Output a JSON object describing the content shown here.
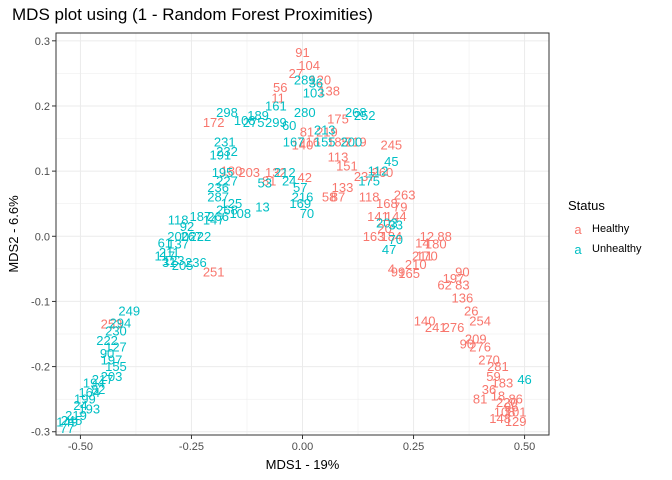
{
  "chart_data": {
    "type": "scatter",
    "title": "MDS plot using (1 - Random Forest Proximities)",
    "xlabel": "MDS1 - 19%",
    "ylabel": "MDS2 - 6.6%",
    "xlim": [
      -0.555,
      0.555
    ],
    "ylim": [
      -0.305,
      0.312
    ],
    "xticks": [
      -0.5,
      -0.25,
      0.0,
      0.25,
      0.5
    ],
    "xtick_labels": [
      "-0.50",
      "-0.25",
      "0.00",
      "0.25",
      "0.50"
    ],
    "yticks": [
      -0.3,
      -0.2,
      -0.1,
      0.0,
      0.1,
      0.2,
      0.3
    ],
    "ytick_labels": [
      "-0.3",
      "-0.2",
      "-0.1",
      "0.0",
      "0.1",
      "0.2",
      "0.3"
    ],
    "grid": true,
    "legend": {
      "title": "Status",
      "position": "right"
    },
    "series": [
      {
        "name": "Healthy",
        "color": "#F8766D",
        "points": [
          {
            "x": 0.0,
            "y": 0.282,
            "label": "91"
          },
          {
            "x": 0.015,
            "y": 0.262,
            "label": "104"
          },
          {
            "x": -0.015,
            "y": 0.25,
            "label": "27"
          },
          {
            "x": 0.04,
            "y": 0.24,
            "label": "120"
          },
          {
            "x": -0.05,
            "y": 0.228,
            "label": "56"
          },
          {
            "x": 0.06,
            "y": 0.223,
            "label": "138"
          },
          {
            "x": -0.055,
            "y": 0.212,
            "label": "11"
          },
          {
            "x": -0.2,
            "y": 0.175,
            "label": "172"
          },
          {
            "x": 0.08,
            "y": 0.18,
            "label": "175"
          },
          {
            "x": 0.0,
            "y": 0.14,
            "label": "140"
          },
          {
            "x": 0.055,
            "y": 0.16,
            "label": "219"
          },
          {
            "x": 0.01,
            "y": 0.16,
            "label": "81"
          },
          {
            "x": 0.015,
            "y": 0.145,
            "label": "216"
          },
          {
            "x": 0.08,
            "y": 0.145,
            "label": "185"
          },
          {
            "x": 0.12,
            "y": 0.145,
            "label": "219"
          },
          {
            "x": 0.2,
            "y": 0.14,
            "label": "245"
          },
          {
            "x": 0.08,
            "y": 0.122,
            "label": "113"
          },
          {
            "x": 0.1,
            "y": 0.108,
            "label": "151"
          },
          {
            "x": -0.16,
            "y": 0.1,
            "label": "180"
          },
          {
            "x": -0.12,
            "y": 0.098,
            "label": "203"
          },
          {
            "x": -0.06,
            "y": 0.098,
            "label": "132"
          },
          {
            "x": -0.075,
            "y": 0.085,
            "label": "81"
          },
          {
            "x": 0.005,
            "y": 0.09,
            "label": "42"
          },
          {
            "x": 0.18,
            "y": 0.098,
            "label": "260"
          },
          {
            "x": 0.14,
            "y": 0.092,
            "label": "237"
          },
          {
            "x": 0.09,
            "y": 0.075,
            "label": "133"
          },
          {
            "x": 0.06,
            "y": 0.06,
            "label": "58"
          },
          {
            "x": 0.08,
            "y": 0.06,
            "label": "87"
          },
          {
            "x": 0.15,
            "y": 0.06,
            "label": "118"
          },
          {
            "x": 0.23,
            "y": 0.063,
            "label": "263"
          },
          {
            "x": 0.19,
            "y": 0.05,
            "label": "168"
          },
          {
            "x": 0.22,
            "y": 0.045,
            "label": "79"
          },
          {
            "x": 0.21,
            "y": 0.03,
            "label": "144"
          },
          {
            "x": 0.17,
            "y": 0.03,
            "label": "141"
          },
          {
            "x": 0.185,
            "y": 0.012,
            "label": "20"
          },
          {
            "x": 0.16,
            "y": 0.0,
            "label": "163"
          },
          {
            "x": 0.2,
            "y": 0.0,
            "label": "184"
          },
          {
            "x": 0.28,
            "y": 0.0,
            "label": "12"
          },
          {
            "x": 0.32,
            "y": 0.0,
            "label": "88"
          },
          {
            "x": 0.27,
            "y": -0.01,
            "label": "14"
          },
          {
            "x": 0.3,
            "y": -0.012,
            "label": "180"
          },
          {
            "x": 0.27,
            "y": -0.03,
            "label": "211"
          },
          {
            "x": 0.28,
            "y": -0.03,
            "label": "170"
          },
          {
            "x": 0.255,
            "y": -0.043,
            "label": "210"
          },
          {
            "x": 0.2,
            "y": -0.05,
            "label": "4"
          },
          {
            "x": 0.215,
            "y": -0.055,
            "label": "99"
          },
          {
            "x": 0.24,
            "y": -0.057,
            "label": "165"
          },
          {
            "x": 0.36,
            "y": -0.055,
            "label": "90"
          },
          {
            "x": 0.34,
            "y": -0.065,
            "label": "197"
          },
          {
            "x": 0.32,
            "y": -0.075,
            "label": "62"
          },
          {
            "x": 0.36,
            "y": -0.075,
            "label": "83"
          },
          {
            "x": 0.36,
            "y": -0.095,
            "label": "136"
          },
          {
            "x": 0.38,
            "y": -0.115,
            "label": "26"
          },
          {
            "x": 0.4,
            "y": -0.13,
            "label": "254"
          },
          {
            "x": 0.275,
            "y": -0.13,
            "label": "140"
          },
          {
            "x": 0.3,
            "y": -0.14,
            "label": "241"
          },
          {
            "x": 0.34,
            "y": -0.14,
            "label": "276"
          },
          {
            "x": 0.39,
            "y": -0.158,
            "label": "209"
          },
          {
            "x": 0.37,
            "y": -0.165,
            "label": "90"
          },
          {
            "x": 0.4,
            "y": -0.17,
            "label": "276"
          },
          {
            "x": 0.42,
            "y": -0.19,
            "label": "270"
          },
          {
            "x": 0.44,
            "y": -0.2,
            "label": "281"
          },
          {
            "x": 0.43,
            "y": -0.215,
            "label": "59"
          },
          {
            "x": 0.45,
            "y": -0.225,
            "label": "183"
          },
          {
            "x": 0.42,
            "y": -0.235,
            "label": "36"
          },
          {
            "x": 0.44,
            "y": -0.245,
            "label": "18"
          },
          {
            "x": 0.4,
            "y": -0.25,
            "label": "81"
          },
          {
            "x": 0.46,
            "y": -0.255,
            "label": "220"
          },
          {
            "x": 0.48,
            "y": -0.25,
            "label": "86"
          },
          {
            "x": 0.47,
            "y": -0.262,
            "label": "96"
          },
          {
            "x": 0.455,
            "y": -0.27,
            "label": "108"
          },
          {
            "x": 0.48,
            "y": -0.27,
            "label": "101"
          },
          {
            "x": 0.445,
            "y": -0.28,
            "label": "148"
          },
          {
            "x": 0.48,
            "y": -0.284,
            "label": "129"
          },
          {
            "x": -0.2,
            "y": -0.055,
            "label": "251"
          },
          {
            "x": -0.43,
            "y": -0.135,
            "label": "253"
          }
        ]
      },
      {
        "name": "Unhealthy",
        "color": "#00BFC4",
        "points": [
          {
            "x": 0.005,
            "y": 0.24,
            "label": "289"
          },
          {
            "x": 0.025,
            "y": 0.22,
            "label": "103"
          },
          {
            "x": 0.03,
            "y": 0.235,
            "label": "36"
          },
          {
            "x": -0.06,
            "y": 0.2,
            "label": "161"
          },
          {
            "x": -0.1,
            "y": 0.185,
            "label": "189"
          },
          {
            "x": -0.17,
            "y": 0.19,
            "label": "298"
          },
          {
            "x": -0.13,
            "y": 0.178,
            "label": "108"
          },
          {
            "x": -0.11,
            "y": 0.175,
            "label": "275"
          },
          {
            "x": -0.06,
            "y": 0.175,
            "label": "299"
          },
          {
            "x": 0.005,
            "y": 0.19,
            "label": "280"
          },
          {
            "x": 0.12,
            "y": 0.19,
            "label": "268"
          },
          {
            "x": 0.14,
            "y": 0.185,
            "label": "252"
          },
          {
            "x": -0.03,
            "y": 0.17,
            "label": "60"
          },
          {
            "x": -0.02,
            "y": 0.145,
            "label": "167"
          },
          {
            "x": 0.05,
            "y": 0.145,
            "label": "155"
          },
          {
            "x": 0.05,
            "y": 0.163,
            "label": "213"
          },
          {
            "x": 0.11,
            "y": 0.145,
            "label": "200"
          },
          {
            "x": -0.175,
            "y": 0.145,
            "label": "231"
          },
          {
            "x": -0.17,
            "y": 0.13,
            "label": "232"
          },
          {
            "x": -0.185,
            "y": 0.125,
            "label": "191"
          },
          {
            "x": -0.04,
            "y": 0.098,
            "label": "212"
          },
          {
            "x": -0.03,
            "y": 0.085,
            "label": "24"
          },
          {
            "x": 0.2,
            "y": 0.115,
            "label": "45"
          },
          {
            "x": 0.17,
            "y": 0.1,
            "label": "112"
          },
          {
            "x": 0.15,
            "y": 0.085,
            "label": "175"
          },
          {
            "x": -0.085,
            "y": 0.082,
            "label": "53"
          },
          {
            "x": -0.18,
            "y": 0.098,
            "label": "195"
          },
          {
            "x": -0.17,
            "y": 0.085,
            "label": "227"
          },
          {
            "x": -0.19,
            "y": 0.075,
            "label": "236"
          },
          {
            "x": -0.005,
            "y": 0.075,
            "label": "57"
          },
          {
            "x": 0.0,
            "y": 0.06,
            "label": "216"
          },
          {
            "x": -0.005,
            "y": 0.05,
            "label": "169"
          },
          {
            "x": 0.01,
            "y": 0.035,
            "label": "70"
          },
          {
            "x": -0.19,
            "y": 0.06,
            "label": "287"
          },
          {
            "x": -0.16,
            "y": 0.05,
            "label": "125"
          },
          {
            "x": -0.09,
            "y": 0.045,
            "label": "13"
          },
          {
            "x": -0.17,
            "y": 0.04,
            "label": "268"
          },
          {
            "x": -0.14,
            "y": 0.035,
            "label": "108"
          },
          {
            "x": -0.19,
            "y": 0.03,
            "label": "266"
          },
          {
            "x": -0.2,
            "y": 0.025,
            "label": "147"
          },
          {
            "x": -0.23,
            "y": 0.03,
            "label": "187"
          },
          {
            "x": -0.28,
            "y": 0.025,
            "label": "118"
          },
          {
            "x": -0.26,
            "y": 0.015,
            "label": "92"
          },
          {
            "x": -0.25,
            "y": 0.0,
            "label": "267"
          },
          {
            "x": -0.28,
            "y": 0.0,
            "label": "200"
          },
          {
            "x": -0.23,
            "y": 0.0,
            "label": "222"
          },
          {
            "x": -0.31,
            "y": -0.01,
            "label": "61"
          },
          {
            "x": -0.28,
            "y": -0.012,
            "label": "137"
          },
          {
            "x": -0.3,
            "y": -0.025,
            "label": "211"
          },
          {
            "x": -0.31,
            "y": -0.03,
            "label": "117"
          },
          {
            "x": -0.29,
            "y": -0.037,
            "label": "123"
          },
          {
            "x": -0.24,
            "y": -0.04,
            "label": "236"
          },
          {
            "x": -0.3,
            "y": -0.04,
            "label": "31"
          },
          {
            "x": -0.27,
            "y": -0.045,
            "label": "205"
          },
          {
            "x": 0.19,
            "y": 0.02,
            "label": "203"
          },
          {
            "x": 0.21,
            "y": 0.017,
            "label": "33"
          },
          {
            "x": 0.21,
            "y": -0.005,
            "label": "70"
          },
          {
            "x": 0.195,
            "y": -0.02,
            "label": "47"
          },
          {
            "x": -0.39,
            "y": -0.115,
            "label": "249"
          },
          {
            "x": -0.41,
            "y": -0.133,
            "label": "294"
          },
          {
            "x": -0.42,
            "y": -0.145,
            "label": "230"
          },
          {
            "x": -0.44,
            "y": -0.16,
            "label": "222"
          },
          {
            "x": -0.42,
            "y": -0.17,
            "label": "127"
          },
          {
            "x": -0.44,
            "y": -0.18,
            "label": "90"
          },
          {
            "x": -0.43,
            "y": -0.19,
            "label": "197"
          },
          {
            "x": -0.42,
            "y": -0.2,
            "label": "155"
          },
          {
            "x": -0.43,
            "y": -0.215,
            "label": "203"
          },
          {
            "x": -0.45,
            "y": -0.22,
            "label": "217"
          },
          {
            "x": -0.47,
            "y": -0.225,
            "label": "194"
          },
          {
            "x": -0.46,
            "y": -0.235,
            "label": "82"
          },
          {
            "x": -0.48,
            "y": -0.24,
            "label": "164"
          },
          {
            "x": -0.49,
            "y": -0.25,
            "label": "199"
          },
          {
            "x": -0.5,
            "y": -0.26,
            "label": "24"
          },
          {
            "x": -0.48,
            "y": -0.265,
            "label": "193"
          },
          {
            "x": -0.51,
            "y": -0.275,
            "label": "219"
          },
          {
            "x": -0.52,
            "y": -0.283,
            "label": "245"
          },
          {
            "x": -0.53,
            "y": -0.285,
            "label": "149"
          },
          {
            "x": -0.53,
            "y": -0.295,
            "label": "77"
          },
          {
            "x": 0.5,
            "y": -0.22,
            "label": "46"
          }
        ]
      }
    ]
  }
}
